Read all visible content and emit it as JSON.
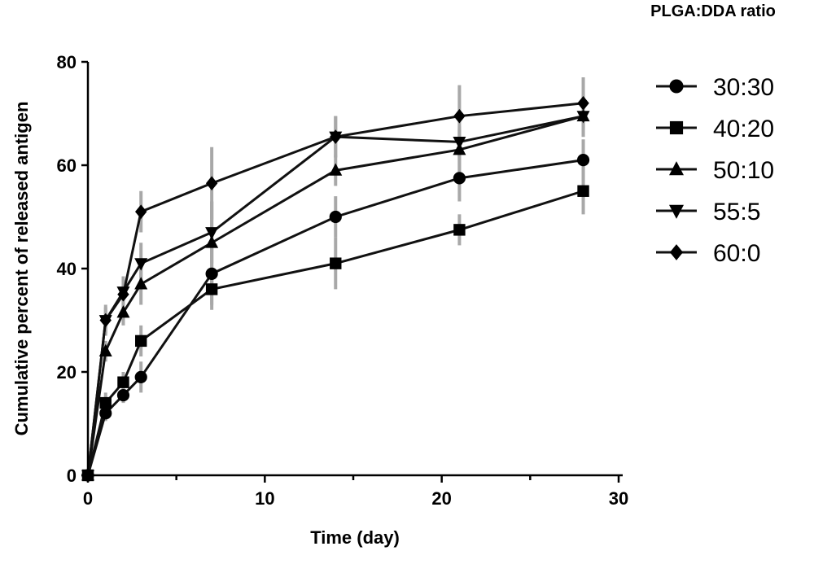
{
  "chart_data": {
    "type": "line",
    "title": "",
    "xlabel": "Time (day)",
    "ylabel": "Cumulative percent of released antigen",
    "xlim": [
      0,
      30
    ],
    "ylim": [
      0,
      80
    ],
    "xticks": [
      "0",
      "10",
      "20",
      "30"
    ],
    "yticks": [
      "0",
      "20",
      "40",
      "60",
      "80"
    ],
    "legend_title": "PLGA:DDA ratio",
    "legend_position": "right",
    "grid": false,
    "x": [
      0,
      1,
      2,
      3,
      7,
      14,
      21,
      28
    ],
    "series": [
      {
        "name": "30:30",
        "marker": "circle",
        "values": [
          0,
          12,
          15.5,
          19,
          39,
          50,
          57.5,
          61
        ],
        "errors": [
          0,
          1.5,
          1.5,
          3,
          6,
          4,
          4.5,
          4
        ]
      },
      {
        "name": "40:20",
        "marker": "square",
        "values": [
          0,
          14,
          18,
          26,
          36,
          41,
          47.5,
          55
        ],
        "errors": [
          0,
          2,
          2,
          3,
          4,
          5,
          3,
          4.5
        ]
      },
      {
        "name": "50:10",
        "marker": "triangle-up",
        "values": [
          0,
          24,
          31.5,
          37,
          45,
          59,
          63,
          69.5
        ],
        "errors": [
          0,
          2,
          2.5,
          4,
          8,
          3,
          4,
          4
        ]
      },
      {
        "name": "55:5",
        "marker": "triangle-down",
        "values": [
          0,
          30,
          35.5,
          41,
          47,
          65.5,
          64.5,
          69.5
        ],
        "errors": [
          0,
          2.5,
          3,
          4,
          6,
          4,
          3,
          4
        ]
      },
      {
        "name": "60:0",
        "marker": "diamond",
        "values": [
          0,
          30,
          35,
          51,
          56.5,
          65.5,
          69.5,
          72
        ],
        "errors": [
          0,
          3,
          3,
          4,
          7,
          4,
          6,
          5
        ]
      }
    ]
  }
}
